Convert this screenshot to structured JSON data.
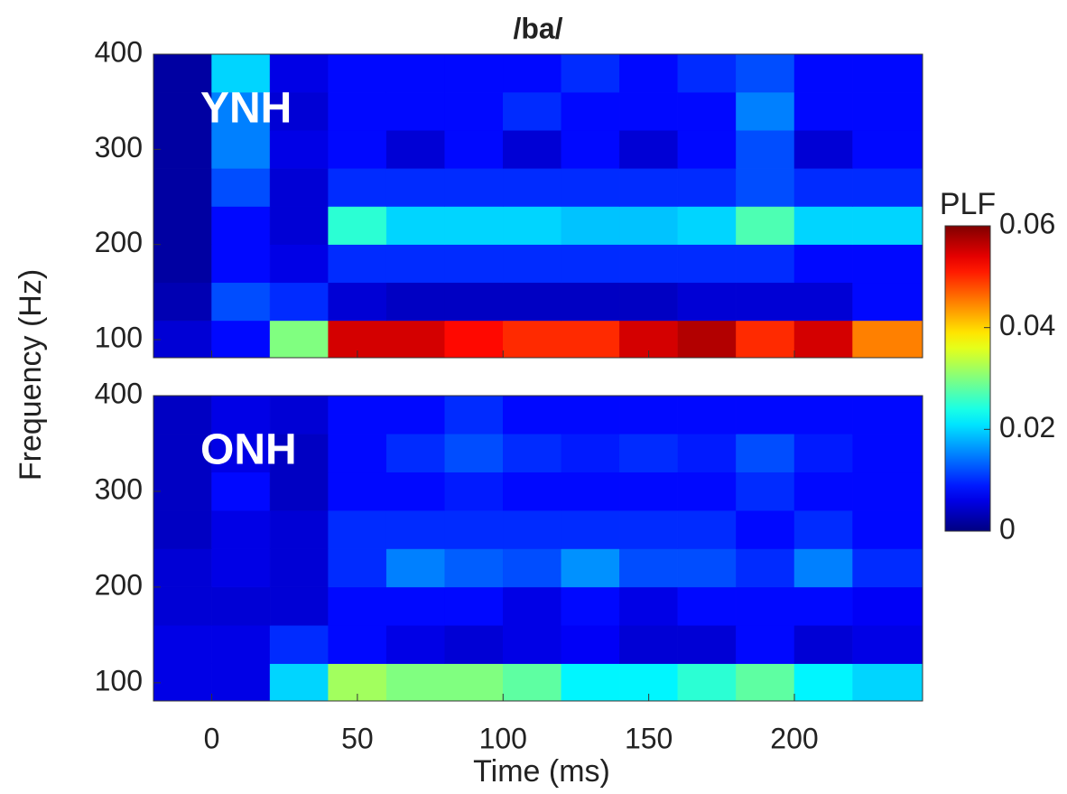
{
  "chart_data": {
    "type": "contour",
    "title": "/ba/",
    "xlabel": "Time (ms)",
    "ylabel": "Frequency (Hz)",
    "colormap": "jet",
    "x": [
      -10,
      10,
      30,
      50,
      70,
      90,
      110,
      130,
      150,
      170,
      190,
      210,
      230
    ],
    "y": [
      100,
      140,
      180,
      220,
      260,
      300,
      340,
      380
    ],
    "xlim": [
      -20,
      244
    ],
    "xticks": [
      0,
      50,
      100,
      150,
      200
    ],
    "ylim": [
      81,
      400
    ],
    "yticks": [
      100,
      200,
      300,
      400
    ],
    "colorbar": {
      "label": "PLF",
      "lim": [
        0,
        0.06
      ],
      "ticks": [
        0,
        0.02,
        0.04,
        0.06
      ]
    },
    "panels": [
      {
        "label": "YNH",
        "values": [
          [
            0.005,
            0.008,
            0.03,
            0.055,
            0.055,
            0.052,
            0.05,
            0.05,
            0.055,
            0.057,
            0.05,
            0.055,
            0.045
          ],
          [
            0.003,
            0.012,
            0.01,
            0.005,
            0.004,
            0.004,
            0.004,
            0.004,
            0.004,
            0.005,
            0.005,
            0.005,
            0.008
          ],
          [
            0.002,
            0.008,
            0.006,
            0.01,
            0.01,
            0.01,
            0.01,
            0.01,
            0.01,
            0.01,
            0.01,
            0.008,
            0.008
          ],
          [
            0.002,
            0.008,
            0.005,
            0.025,
            0.02,
            0.02,
            0.02,
            0.019,
            0.019,
            0.02,
            0.027,
            0.02,
            0.02
          ],
          [
            0.002,
            0.012,
            0.005,
            0.01,
            0.01,
            0.01,
            0.01,
            0.01,
            0.01,
            0.01,
            0.012,
            0.01,
            0.01
          ],
          [
            0.002,
            0.015,
            0.006,
            0.008,
            0.005,
            0.008,
            0.005,
            0.008,
            0.005,
            0.008,
            0.012,
            0.005,
            0.008
          ],
          [
            0.002,
            0.015,
            0.005,
            0.008,
            0.008,
            0.008,
            0.01,
            0.008,
            0.008,
            0.008,
            0.015,
            0.008,
            0.008
          ],
          [
            0.002,
            0.02,
            0.006,
            0.008,
            0.008,
            0.008,
            0.008,
            0.01,
            0.008,
            0.01,
            0.012,
            0.008,
            0.008
          ]
        ]
      },
      {
        "label": "ONH",
        "values": [
          [
            0.006,
            0.006,
            0.02,
            0.032,
            0.03,
            0.03,
            0.028,
            0.022,
            0.022,
            0.025,
            0.028,
            0.022,
            0.02
          ],
          [
            0.006,
            0.006,
            0.01,
            0.008,
            0.006,
            0.005,
            0.006,
            0.007,
            0.005,
            0.005,
            0.008,
            0.005,
            0.006
          ],
          [
            0.005,
            0.005,
            0.005,
            0.008,
            0.008,
            0.008,
            0.006,
            0.008,
            0.006,
            0.008,
            0.008,
            0.008,
            0.007
          ],
          [
            0.005,
            0.006,
            0.005,
            0.01,
            0.015,
            0.013,
            0.012,
            0.016,
            0.012,
            0.012,
            0.01,
            0.015,
            0.01
          ],
          [
            0.004,
            0.006,
            0.005,
            0.01,
            0.01,
            0.01,
            0.01,
            0.01,
            0.01,
            0.01,
            0.008,
            0.01,
            0.008
          ],
          [
            0.004,
            0.008,
            0.004,
            0.008,
            0.008,
            0.009,
            0.008,
            0.008,
            0.008,
            0.008,
            0.01,
            0.008,
            0.008
          ],
          [
            0.004,
            0.006,
            0.004,
            0.008,
            0.01,
            0.012,
            0.01,
            0.009,
            0.01,
            0.009,
            0.012,
            0.009,
            0.008
          ],
          [
            0.004,
            0.006,
            0.005,
            0.008,
            0.008,
            0.01,
            0.008,
            0.008,
            0.008,
            0.008,
            0.008,
            0.008,
            0.008
          ]
        ]
      }
    ]
  }
}
